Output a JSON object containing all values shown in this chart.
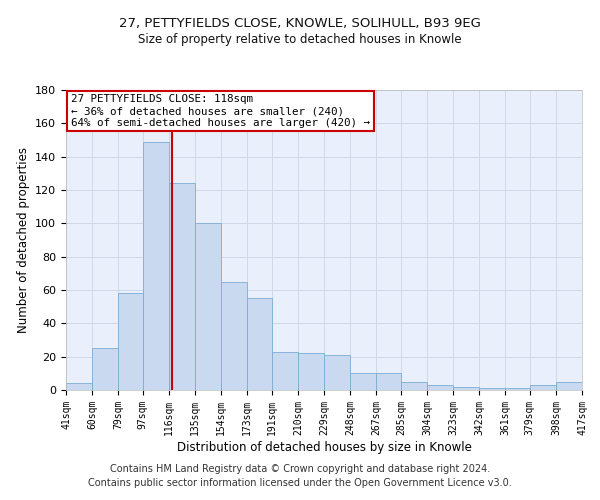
{
  "title1": "27, PETTYFIELDS CLOSE, KNOWLE, SOLIHULL, B93 9EG",
  "title2": "Size of property relative to detached houses in Knowle",
  "xlabel": "Distribution of detached houses by size in Knowle",
  "ylabel": "Number of detached properties",
  "bar_color": "#c9d9f0",
  "bar_edge_color": "#7badd4",
  "bins": [
    41,
    60,
    79,
    97,
    116,
    135,
    154,
    173,
    191,
    210,
    229,
    248,
    267,
    285,
    304,
    323,
    342,
    361,
    379,
    398,
    417
  ],
  "values": [
    4,
    25,
    58,
    149,
    124,
    100,
    65,
    55,
    23,
    22,
    21,
    10,
    10,
    5,
    3,
    2,
    1,
    1,
    3,
    5
  ],
  "tick_labels": [
    "41sqm",
    "60sqm",
    "79sqm",
    "97sqm",
    "116sqm",
    "135sqm",
    "154sqm",
    "173sqm",
    "191sqm",
    "210sqm",
    "229sqm",
    "248sqm",
    "267sqm",
    "285sqm",
    "304sqm",
    "323sqm",
    "342sqm",
    "361sqm",
    "379sqm",
    "398sqm",
    "417sqm"
  ],
  "property_line_x": 118,
  "property_line_color": "#cc0000",
  "annotation_text": "27 PETTYFIELDS CLOSE: 118sqm\n← 36% of detached houses are smaller (240)\n64% of semi-detached houses are larger (420) →",
  "annotation_box_color": "#ffffff",
  "annotation_box_edge": "#cc0000",
  "ylim": [
    0,
    180
  ],
  "yticks": [
    0,
    20,
    40,
    60,
    80,
    100,
    120,
    140,
    160,
    180
  ],
  "grid_color": "#d0d8e8",
  "bg_color": "#eaf0fb",
  "footer": "Contains HM Land Registry data © Crown copyright and database right 2024.\nContains public sector information licensed under the Open Government Licence v3.0.",
  "footer_fontsize": 7.0,
  "title1_fontsize": 9.5,
  "title2_fontsize": 8.5,
  "xlabel_fontsize": 8.5,
  "ylabel_fontsize": 8.5,
  "tick_fontsize": 7.0,
  "ytick_fontsize": 8.0,
  "ann_fontsize": 7.8
}
